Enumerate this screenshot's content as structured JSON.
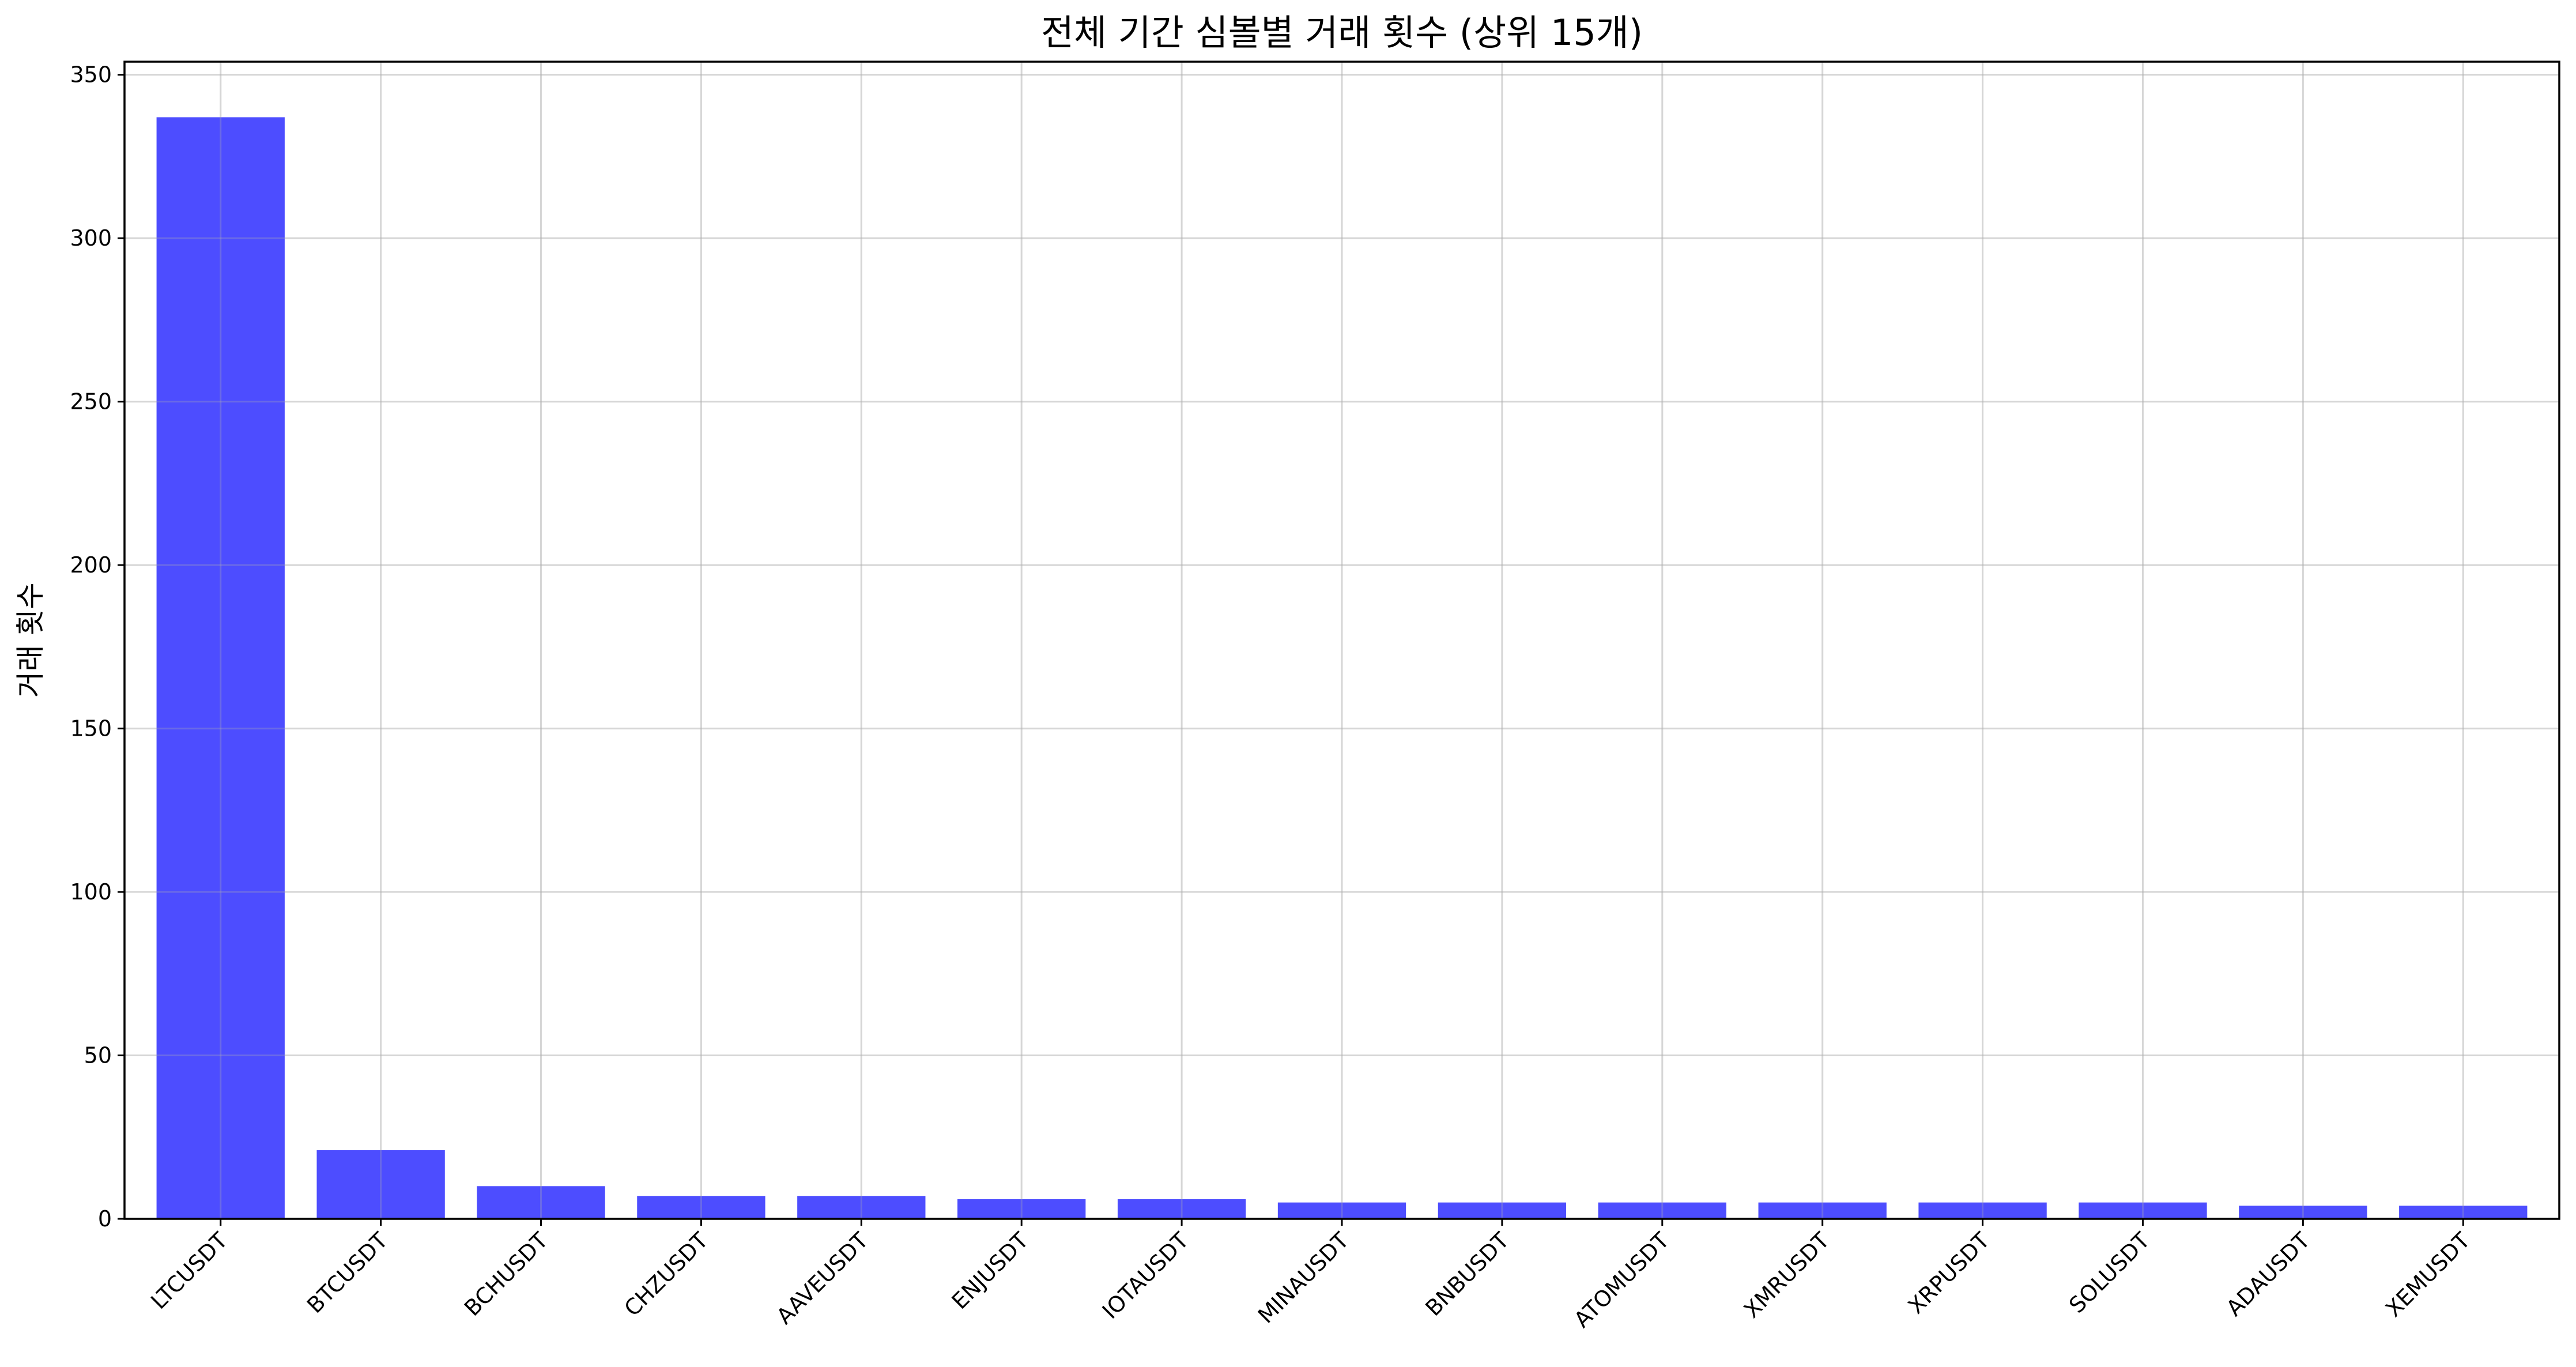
{
  "chart_data": {
    "type": "bar",
    "title": "전체 기간 심볼별 거래 횟수 (상위 15개)",
    "xlabel": "",
    "ylabel": "거래 횟수",
    "categories": [
      "LTCUSDT",
      "BTCUSDT",
      "BCHUSDT",
      "CHZUSDT",
      "AAVEUSDT",
      "ENJUSDT",
      "IOTAUSDT",
      "MINAUSDT",
      "BNBUSDT",
      "ATOMUSDT",
      "XMRUSDT",
      "XRPUSDT",
      "SOLUSDT",
      "ADAUSDT",
      "XEMUSDT"
    ],
    "values": [
      337,
      21,
      10,
      7,
      7,
      6,
      6,
      5,
      5,
      5,
      5,
      5,
      5,
      4,
      4
    ],
    "ylim": [
      0,
      354
    ],
    "yticks": [
      0,
      50,
      100,
      150,
      200,
      250,
      300,
      350
    ],
    "grid": true,
    "bar_color": "#4d4dff",
    "legend": null
  }
}
